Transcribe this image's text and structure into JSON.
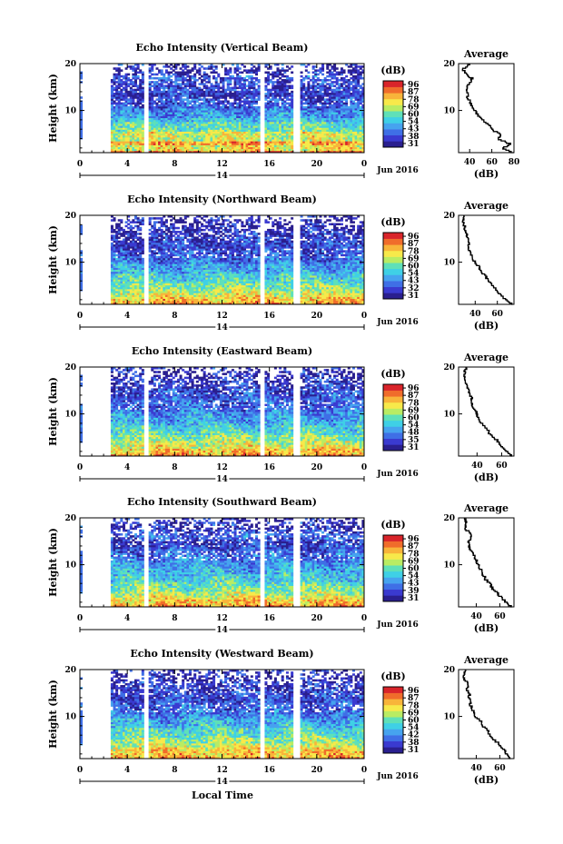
{
  "figure": {
    "xlabel": "Local Time",
    "date_label": "Jun 2016",
    "day_label": "14"
  },
  "colorbar": {
    "unit": "(dB)",
    "ticks": [
      "96",
      "87",
      "78",
      "69",
      "60",
      "54",
      "43",
      "38",
      "31"
    ]
  },
  "colors": {
    "scale": [
      "#2a1f8f",
      "#3a3ad0",
      "#3f6fe6",
      "#46a3ef",
      "#3fd0e6",
      "#5fe0b8",
      "#b9ec63",
      "#f7e94a",
      "#f8b43a",
      "#f06c2b",
      "#d9242a"
    ],
    "profile_line": "#000000"
  },
  "chart_data": [
    {
      "type": "heatmap",
      "title": "Echo Intensity (Vertical Beam)",
      "ylabel": "Height (km)",
      "xlim": [
        0,
        24
      ],
      "ylim": [
        1,
        20
      ],
      "x_ticks": [
        "0",
        "4",
        "8",
        "12",
        "16",
        "20",
        "0"
      ],
      "y_ticks": [
        "10",
        "20"
      ],
      "cbar_ticks": [
        "96",
        "87",
        "78",
        "69",
        "60",
        "54",
        "43",
        "38",
        "31"
      ],
      "gaps": [
        [
          0.3,
          2.5
        ],
        [
          5.5,
          5.8
        ],
        [
          15.2,
          15.6
        ],
        [
          18.0,
          18.5
        ]
      ],
      "profile": {
        "title": "Average",
        "xlabel": "(dB)",
        "x_ticks": [
          "40",
          "60",
          "80"
        ],
        "xlim": [
          30,
          80
        ],
        "height": [
          1,
          2,
          3,
          4,
          5,
          6,
          7,
          8,
          9,
          10,
          11,
          12,
          13,
          14,
          15,
          16,
          17,
          18,
          19,
          20
        ],
        "value": [
          80,
          70,
          76,
          66,
          68,
          60,
          58,
          52,
          48,
          45,
          42,
          40,
          38,
          38,
          38,
          40,
          42,
          36,
          34,
          40
        ]
      }
    },
    {
      "type": "heatmap",
      "title": "Echo Intensity (Northward Beam)",
      "ylabel": "Height (km)",
      "xlim": [
        0,
        24
      ],
      "ylim": [
        1,
        20
      ],
      "x_ticks": [
        "0",
        "4",
        "8",
        "12",
        "16",
        "20",
        "0"
      ],
      "y_ticks": [
        "10",
        "20"
      ],
      "cbar_ticks": [
        "96",
        "87",
        "78",
        "69",
        "60",
        "54",
        "43",
        "32",
        "31"
      ],
      "gaps": [
        [
          0.3,
          2.5
        ],
        [
          5.5,
          5.8
        ],
        [
          15.2,
          15.6
        ],
        [
          18.0,
          18.5
        ]
      ],
      "profile": {
        "title": "Average",
        "xlabel": "(dB)",
        "x_ticks": [
          "40",
          "60"
        ],
        "xlim": [
          25,
          75
        ],
        "height": [
          1,
          2,
          3,
          4,
          5,
          6,
          7,
          8,
          9,
          10,
          11,
          12,
          13,
          14,
          15,
          16,
          17,
          18,
          19,
          20
        ],
        "value": [
          74,
          68,
          64,
          60,
          56,
          52,
          50,
          46,
          44,
          40,
          38,
          36,
          34,
          34,
          33,
          32,
          31,
          30,
          29,
          30
        ]
      }
    },
    {
      "type": "heatmap",
      "title": "Echo Intensity (Eastward Beam)",
      "ylabel": "Height (km)",
      "xlim": [
        0,
        24
      ],
      "ylim": [
        1,
        20
      ],
      "x_ticks": [
        "0",
        "4",
        "8",
        "12",
        "16",
        "20",
        "0"
      ],
      "y_ticks": [
        "10",
        "20"
      ],
      "cbar_ticks": [
        "96",
        "87",
        "78",
        "69",
        "60",
        "54",
        "48",
        "35",
        "31"
      ],
      "gaps": [
        [
          0.3,
          2.5
        ],
        [
          5.5,
          5.8
        ],
        [
          15.2,
          15.6
        ],
        [
          18.0,
          18.5
        ]
      ],
      "profile": {
        "title": "Average",
        "xlabel": "(dB)",
        "x_ticks": [
          "40",
          "60"
        ],
        "xlim": [
          25,
          70
        ],
        "height": [
          1,
          2,
          3,
          4,
          5,
          6,
          7,
          8,
          9,
          10,
          11,
          12,
          13,
          14,
          15,
          16,
          17,
          18,
          19,
          20
        ],
        "value": [
          68,
          64,
          60,
          58,
          54,
          50,
          48,
          44,
          42,
          40,
          38,
          36,
          36,
          35,
          33,
          32,
          31,
          30,
          30,
          31
        ]
      }
    },
    {
      "type": "heatmap",
      "title": "Echo Intensity (Southward Beam)",
      "ylabel": "Height (km)",
      "xlim": [
        0,
        24
      ],
      "ylim": [
        1,
        20
      ],
      "x_ticks": [
        "0",
        "4",
        "8",
        "12",
        "16",
        "20",
        "0"
      ],
      "y_ticks": [
        "10",
        "20"
      ],
      "cbar_ticks": [
        "96",
        "87",
        "78",
        "69",
        "60",
        "54",
        "43",
        "39",
        "31"
      ],
      "gaps": [
        [
          0.3,
          2.5
        ],
        [
          5.5,
          5.8
        ],
        [
          15.2,
          15.6
        ],
        [
          18.0,
          18.5
        ]
      ],
      "profile": {
        "title": "Average",
        "xlabel": "(dB)",
        "x_ticks": [
          "40",
          "60"
        ],
        "xlim": [
          25,
          72
        ],
        "height": [
          1,
          2,
          3,
          4,
          5,
          6,
          7,
          8,
          9,
          10,
          11,
          12,
          13,
          14,
          15,
          16,
          17,
          18,
          19,
          20
        ],
        "value": [
          70,
          66,
          62,
          58,
          54,
          52,
          48,
          46,
          44,
          42,
          40,
          38,
          36,
          34,
          33,
          36,
          34,
          30,
          32,
          30
        ]
      }
    },
    {
      "type": "heatmap",
      "title": "Echo Intensity (Westward Beam)",
      "ylabel": "Height (km)",
      "xlim": [
        0,
        24
      ],
      "ylim": [
        1,
        20
      ],
      "x_ticks": [
        "0",
        "4",
        "8",
        "12",
        "16",
        "20",
        "0"
      ],
      "y_ticks": [
        "10",
        "20"
      ],
      "cbar_ticks": [
        "96",
        "87",
        "78",
        "69",
        "60",
        "54",
        "42",
        "38",
        "31"
      ],
      "gaps": [
        [
          0.3,
          2.5
        ],
        [
          5.5,
          5.8
        ],
        [
          15.2,
          15.6
        ],
        [
          18.0,
          18.5
        ]
      ],
      "profile": {
        "title": "Average",
        "xlabel": "(dB)",
        "x_ticks": [
          "40",
          "60"
        ],
        "xlim": [
          25,
          72
        ],
        "height": [
          1,
          2,
          3,
          4,
          5,
          6,
          7,
          8,
          9,
          10,
          11,
          12,
          13,
          14,
          15,
          16,
          17,
          18,
          19,
          20
        ],
        "value": [
          70,
          66,
          64,
          60,
          56,
          52,
          50,
          46,
          44,
          40,
          38,
          36,
          35,
          34,
          34,
          32,
          33,
          30,
          30,
          31
        ]
      }
    }
  ]
}
